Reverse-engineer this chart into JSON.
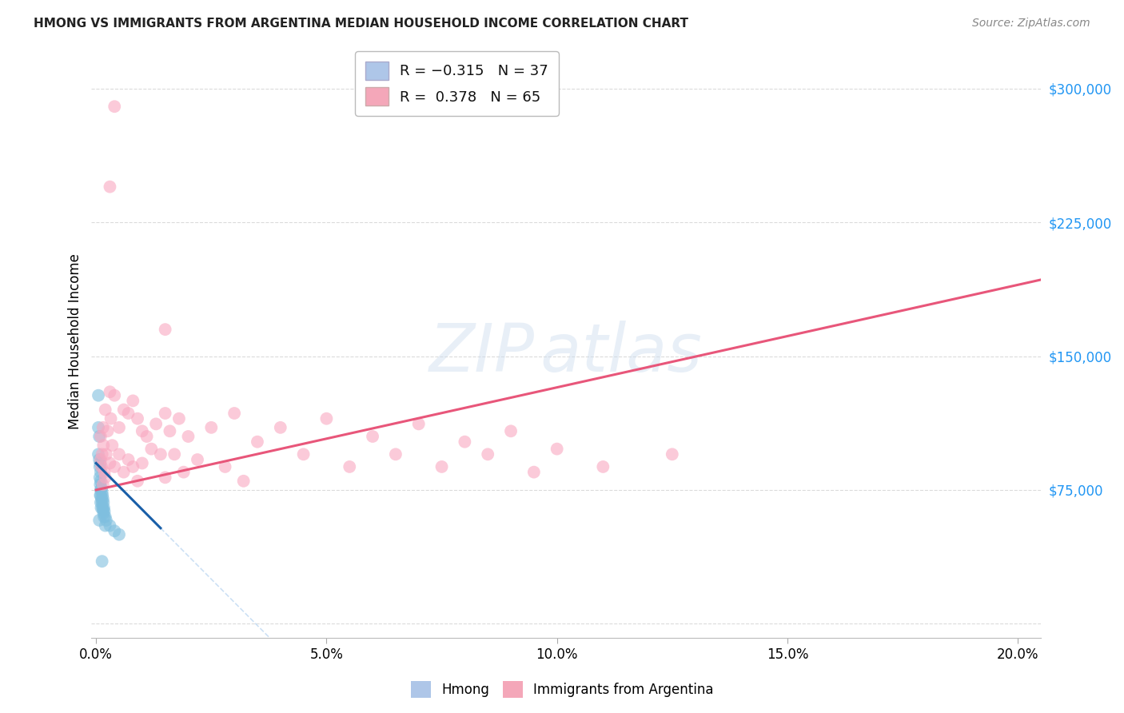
{
  "title": "HMONG VS IMMIGRANTS FROM ARGENTINA MEDIAN HOUSEHOLD INCOME CORRELATION CHART",
  "source": "Source: ZipAtlas.com",
  "xlabel_ticks": [
    "0.0%",
    "5.0%",
    "10.0%",
    "15.0%",
    "20.0%"
  ],
  "xlabel_values": [
    0.0,
    0.05,
    0.1,
    0.15,
    0.2
  ],
  "ylabel": "Median Household Income",
  "ylabel_ticks": [
    0,
    75000,
    150000,
    225000,
    300000
  ],
  "ylabel_labels": [
    "",
    "$75,000",
    "$150,000",
    "$225,000",
    "$300,000"
  ],
  "ymax": 325000,
  "xmax": 0.205,
  "hmong_color": "#7fbfdf",
  "argentina_color": "#f9a8c0",
  "hmong_line_color": "#1a5fa8",
  "argentina_line_color": "#e8567a",
  "dashed_line_color": "#aaccee",
  "grid_color": "#cccccc",
  "legend_box_color1": "#aec6e8",
  "legend_box_color2": "#f4a7b9",
  "hmong_x": [
    0.0005,
    0.0005,
    0.0005,
    0.0007,
    0.0007,
    0.0008,
    0.0008,
    0.0009,
    0.0009,
    0.001,
    0.001,
    0.001,
    0.001,
    0.001,
    0.0012,
    0.0012,
    0.0013,
    0.0013,
    0.0014,
    0.0014,
    0.0015,
    0.0015,
    0.0016,
    0.0016,
    0.0017,
    0.0017,
    0.0018,
    0.002,
    0.002,
    0.0022,
    0.003,
    0.004,
    0.005,
    0.0007,
    0.0009,
    0.0011,
    0.0013
  ],
  "hmong_y": [
    128000,
    110000,
    95000,
    105000,
    92000,
    88000,
    82000,
    90000,
    78000,
    85000,
    80000,
    75000,
    72000,
    68000,
    76000,
    70000,
    74000,
    68000,
    72000,
    65000,
    70000,
    64000,
    68000,
    62000,
    65000,
    60000,
    63000,
    60000,
    55000,
    58000,
    55000,
    52000,
    50000,
    58000,
    72000,
    65000,
    35000
  ],
  "argentina_x": [
    0.001,
    0.001,
    0.0012,
    0.0013,
    0.0015,
    0.0015,
    0.0016,
    0.0018,
    0.002,
    0.002,
    0.0022,
    0.0025,
    0.003,
    0.003,
    0.0032,
    0.0035,
    0.004,
    0.004,
    0.005,
    0.005,
    0.006,
    0.006,
    0.007,
    0.007,
    0.008,
    0.008,
    0.009,
    0.009,
    0.01,
    0.01,
    0.011,
    0.012,
    0.013,
    0.014,
    0.015,
    0.015,
    0.016,
    0.017,
    0.018,
    0.019,
    0.02,
    0.022,
    0.025,
    0.028,
    0.03,
    0.032,
    0.035,
    0.04,
    0.045,
    0.05,
    0.055,
    0.06,
    0.065,
    0.07,
    0.075,
    0.08,
    0.085,
    0.09,
    0.095,
    0.1,
    0.11,
    0.125,
    0.015,
    0.003,
    0.004
  ],
  "argentina_y": [
    92000,
    105000,
    88000,
    95000,
    110000,
    78000,
    100000,
    85000,
    120000,
    82000,
    95000,
    108000,
    130000,
    90000,
    115000,
    100000,
    128000,
    88000,
    110000,
    95000,
    120000,
    85000,
    118000,
    92000,
    125000,
    88000,
    115000,
    80000,
    108000,
    90000,
    105000,
    98000,
    112000,
    95000,
    118000,
    82000,
    108000,
    95000,
    115000,
    85000,
    105000,
    92000,
    110000,
    88000,
    118000,
    80000,
    102000,
    110000,
    95000,
    115000,
    88000,
    105000,
    95000,
    112000,
    88000,
    102000,
    95000,
    108000,
    85000,
    98000,
    88000,
    95000,
    165000,
    245000,
    290000
  ]
}
